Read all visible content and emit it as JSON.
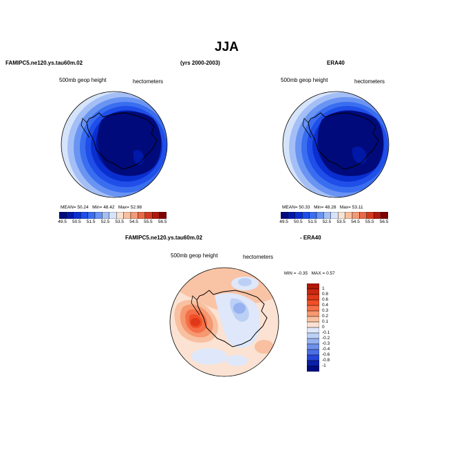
{
  "page": {
    "title": "JJA",
    "case_label": "FAMIPC5.ne120.ys.tau60m.02",
    "years_label": "(yrs 2000-2003)",
    "ref_label": "ERA40",
    "diff_case_label": "FAMIPC5.ne120.ys.tau60m.02",
    "diff_ref_label": "- ERA40"
  },
  "chart_data": [
    {
      "type": "heatmap",
      "name": "model",
      "title": "500mb  geop  height",
      "units": "hectometers",
      "stats": {
        "mean_label": "MEAN=",
        "mean": "50.24",
        "min_label": "Min=",
        "min": "48.42",
        "max_label": "Max=",
        "max": "52.98"
      },
      "levels": [
        "49.5",
        "50.5",
        "51.5",
        "52.5",
        "53.5",
        "54.5",
        "55.5",
        "56.5"
      ],
      "colors": [
        "#000a7a",
        "#0018a8",
        "#0a2fd0",
        "#1f4ee8",
        "#3a6ef0",
        "#6a94f2",
        "#a4bff6",
        "#d6e4fa",
        "#f8e2d4",
        "#f8c0a0",
        "#f49a76",
        "#e86a48",
        "#d23a20",
        "#b01a0a",
        "#7e0000"
      ]
    },
    {
      "type": "heatmap",
      "name": "reference",
      "title": "500mb  geop  height",
      "units": "hectometers",
      "stats": {
        "mean_label": "MEAN=",
        "mean": "50.33",
        "min_label": "Min=",
        "min": "48.28",
        "max_label": "Max=",
        "max": "53.11"
      },
      "levels": [
        "49.5",
        "50.5",
        "51.5",
        "52.5",
        "53.5",
        "54.5",
        "55.5",
        "56.5"
      ],
      "colors": [
        "#000a7a",
        "#0018a8",
        "#0a2fd0",
        "#1f4ee8",
        "#3a6ef0",
        "#6a94f2",
        "#a4bff6",
        "#d6e4fa",
        "#f8e2d4",
        "#f8c0a0",
        "#f49a76",
        "#e86a48",
        "#d23a20",
        "#b01a0a",
        "#7e0000"
      ]
    },
    {
      "type": "heatmap",
      "name": "difference",
      "title": "500mb  geop  height",
      "units": "hectometers",
      "stats": {
        "min_label": "MIN =",
        "min": "-0.35",
        "max_label": "MAX =",
        "max": "0.57"
      },
      "levels": [
        "1",
        "0.8",
        "0.6",
        "0.4",
        "0.3",
        "0.2",
        "0.1",
        "0",
        "-0.1",
        "-0.2",
        "-0.3",
        "-0.4",
        "-0.6",
        "-0.8",
        "-1"
      ],
      "colors": [
        "#b01808",
        "#c82810",
        "#e03818",
        "#f05028",
        "#f47048",
        "#f69870",
        "#f8c0a0",
        "#fbe2d2",
        "#dfe8fa",
        "#bcd0f6",
        "#96b2f0",
        "#6e90ea",
        "#4a6ee6",
        "#2446d8",
        "#0a1ea8",
        "#000a80"
      ]
    }
  ]
}
